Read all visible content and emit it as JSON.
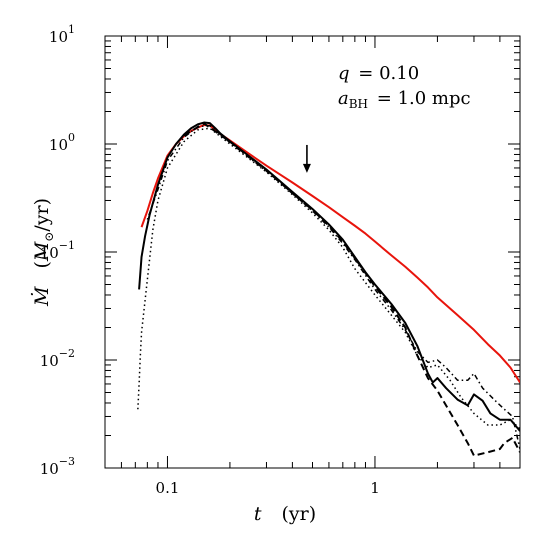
{
  "chart_data": {
    "type": "line",
    "xscale": "log",
    "yscale": "log",
    "xlim": [
      0.05,
      5
    ],
    "ylim": [
      0.001,
      10
    ],
    "x_tick_labels": [
      {
        "value": 0.1,
        "text": "0.1"
      },
      {
        "value": 1,
        "text": "1"
      }
    ],
    "y_tick_labels": [
      {
        "value": 0.001,
        "base": "10",
        "exp": "−3"
      },
      {
        "value": 0.01,
        "base": "10",
        "exp": "−2"
      },
      {
        "value": 0.1,
        "base": "10",
        "exp": "−1"
      },
      {
        "value": 1,
        "base": "10",
        "exp": "0"
      },
      {
        "value": 10,
        "base": "10",
        "exp": "1"
      }
    ],
    "xlabel": {
      "symbol": "t",
      "unit": "(yr)"
    },
    "ylabel": {
      "symbol": "Ṁ",
      "unit_open": "(",
      "unit_M": "M",
      "unit_sub": "⊙",
      "unit_close": "/yr)"
    },
    "annotations": {
      "line1": {
        "lhs": "q",
        "rhs": "= 0.10"
      },
      "line2": {
        "lhs": "a",
        "sub": "BH",
        "rhs": "= 1.0 mpc"
      }
    },
    "arrow": {
      "x": 0.47,
      "y_top": 0.98,
      "y_bottom": 0.54
    },
    "grid": false,
    "series": [
      {
        "color": "#e8140c",
        "dash": "solid",
        "width": 2,
        "points": [
          [
            0.075,
            0.17
          ],
          [
            0.08,
            0.24
          ],
          [
            0.085,
            0.35
          ],
          [
            0.09,
            0.48
          ],
          [
            0.1,
            0.78
          ],
          [
            0.11,
            1.0
          ],
          [
            0.12,
            1.18
          ],
          [
            0.13,
            1.32
          ],
          [
            0.14,
            1.42
          ],
          [
            0.15,
            1.5
          ],
          [
            0.16,
            1.48
          ],
          [
            0.17,
            1.36
          ],
          [
            0.18,
            1.24
          ],
          [
            0.2,
            1.08
          ],
          [
            0.22,
            0.95
          ],
          [
            0.25,
            0.8
          ],
          [
            0.3,
            0.63
          ],
          [
            0.35,
            0.52
          ],
          [
            0.4,
            0.44
          ],
          [
            0.5,
            0.33
          ],
          [
            0.6,
            0.26
          ],
          [
            0.7,
            0.21
          ],
          [
            0.8,
            0.175
          ],
          [
            0.9,
            0.148
          ],
          [
            1.0,
            0.125
          ],
          [
            1.2,
            0.093
          ],
          [
            1.4,
            0.073
          ],
          [
            1.6,
            0.058
          ],
          [
            1.8,
            0.047
          ],
          [
            2.0,
            0.038
          ],
          [
            2.5,
            0.026
          ],
          [
            3.0,
            0.019
          ],
          [
            3.5,
            0.014
          ],
          [
            4.0,
            0.011
          ],
          [
            4.5,
            0.0085
          ],
          [
            5.0,
            0.0062
          ]
        ]
      },
      {
        "color": "#000000",
        "dash": "solid",
        "width": 2,
        "points": [
          [
            0.073,
            0.045
          ],
          [
            0.075,
            0.09
          ],
          [
            0.078,
            0.14
          ],
          [
            0.082,
            0.22
          ],
          [
            0.09,
            0.42
          ],
          [
            0.1,
            0.75
          ],
          [
            0.11,
            1.0
          ],
          [
            0.12,
            1.22
          ],
          [
            0.13,
            1.4
          ],
          [
            0.14,
            1.52
          ],
          [
            0.15,
            1.58
          ],
          [
            0.16,
            1.56
          ],
          [
            0.17,
            1.4
          ],
          [
            0.18,
            1.25
          ],
          [
            0.2,
            1.06
          ],
          [
            0.22,
            0.92
          ],
          [
            0.25,
            0.76
          ],
          [
            0.3,
            0.58
          ],
          [
            0.35,
            0.45
          ],
          [
            0.4,
            0.36
          ],
          [
            0.5,
            0.25
          ],
          [
            0.6,
            0.18
          ],
          [
            0.7,
            0.13
          ],
          [
            0.8,
            0.09
          ],
          [
            0.9,
            0.065
          ],
          [
            1.0,
            0.05
          ],
          [
            1.2,
            0.033
          ],
          [
            1.4,
            0.022
          ],
          [
            1.6,
            0.0135
          ],
          [
            1.8,
            0.0075
          ],
          [
            1.9,
            0.0062
          ],
          [
            2.0,
            0.0068
          ],
          [
            2.2,
            0.0055
          ],
          [
            2.5,
            0.0043
          ],
          [
            2.8,
            0.0038
          ],
          [
            3.0,
            0.0048
          ],
          [
            3.3,
            0.0042
          ],
          [
            3.6,
            0.0032
          ],
          [
            4.0,
            0.0028
          ],
          [
            4.5,
            0.0028
          ],
          [
            5.0,
            0.0022
          ]
        ]
      },
      {
        "color": "#000000",
        "dash": "dashed",
        "width": 2,
        "points": [
          [
            0.12,
            1.2
          ],
          [
            0.15,
            1.55
          ],
          [
            0.2,
            1.05
          ],
          [
            0.3,
            0.57
          ],
          [
            0.4,
            0.35
          ],
          [
            0.5,
            0.245
          ],
          [
            0.6,
            0.175
          ],
          [
            0.7,
            0.125
          ],
          [
            0.8,
            0.088
          ],
          [
            1.0,
            0.048
          ],
          [
            1.2,
            0.031
          ],
          [
            1.4,
            0.02
          ],
          [
            1.6,
            0.011
          ],
          [
            1.8,
            0.0068
          ],
          [
            2.0,
            0.0052
          ],
          [
            2.2,
            0.0038
          ],
          [
            2.5,
            0.0025
          ],
          [
            2.8,
            0.0017
          ],
          [
            3.0,
            0.0013
          ],
          [
            3.5,
            0.0014
          ],
          [
            4.0,
            0.0015
          ],
          [
            4.2,
            0.0017
          ],
          [
            4.6,
            0.0019
          ],
          [
            5.0,
            0.0014
          ]
        ]
      },
      {
        "color": "#000000",
        "dash": "dotted",
        "width": 1.5,
        "points": [
          [
            0.072,
            0.0035
          ],
          [
            0.073,
            0.006
          ],
          [
            0.074,
            0.011
          ],
          [
            0.075,
            0.018
          ],
          [
            0.085,
            0.16
          ],
          [
            0.09,
            0.3
          ],
          [
            0.1,
            0.6
          ],
          [
            0.12,
            1.05
          ],
          [
            0.14,
            1.35
          ],
          [
            0.16,
            1.4
          ],
          [
            0.2,
            1.0
          ],
          [
            0.3,
            0.55
          ],
          [
            0.4,
            0.34
          ],
          [
            0.5,
            0.23
          ],
          [
            0.6,
            0.16
          ],
          [
            0.7,
            0.11
          ],
          [
            0.8,
            0.07
          ],
          [
            1.0,
            0.04
          ],
          [
            1.2,
            0.026
          ],
          [
            1.4,
            0.018
          ],
          [
            1.6,
            0.011
          ],
          [
            1.8,
            0.0085
          ],
          [
            2.0,
            0.009
          ],
          [
            2.3,
            0.0065
          ],
          [
            2.6,
            0.0045
          ],
          [
            3.0,
            0.0032
          ],
          [
            3.5,
            0.0025
          ],
          [
            4.0,
            0.0025
          ],
          [
            4.5,
            0.0028
          ],
          [
            5.0,
            0.0023
          ]
        ]
      },
      {
        "color": "#000000",
        "dash": "dashdot",
        "width": 1.5,
        "points": [
          [
            0.08,
            0.2
          ],
          [
            0.09,
            0.38
          ],
          [
            0.1,
            0.7
          ],
          [
            0.12,
            1.15
          ],
          [
            0.14,
            1.45
          ],
          [
            0.16,
            1.48
          ],
          [
            0.2,
            1.03
          ],
          [
            0.3,
            0.56
          ],
          [
            0.4,
            0.35
          ],
          [
            0.5,
            0.24
          ],
          [
            0.6,
            0.17
          ],
          [
            0.7,
            0.12
          ],
          [
            0.8,
            0.085
          ],
          [
            1.0,
            0.045
          ],
          [
            1.2,
            0.029
          ],
          [
            1.4,
            0.019
          ],
          [
            1.6,
            0.012
          ],
          [
            1.8,
            0.0095
          ],
          [
            2.0,
            0.01
          ],
          [
            2.2,
            0.0085
          ],
          [
            2.5,
            0.0065
          ],
          [
            2.8,
            0.0065
          ],
          [
            3.0,
            0.0075
          ],
          [
            3.3,
            0.0055
          ],
          [
            3.8,
            0.0042
          ],
          [
            4.2,
            0.0035
          ],
          [
            4.6,
            0.003
          ],
          [
            5.0,
            0.0015
          ]
        ]
      }
    ]
  }
}
